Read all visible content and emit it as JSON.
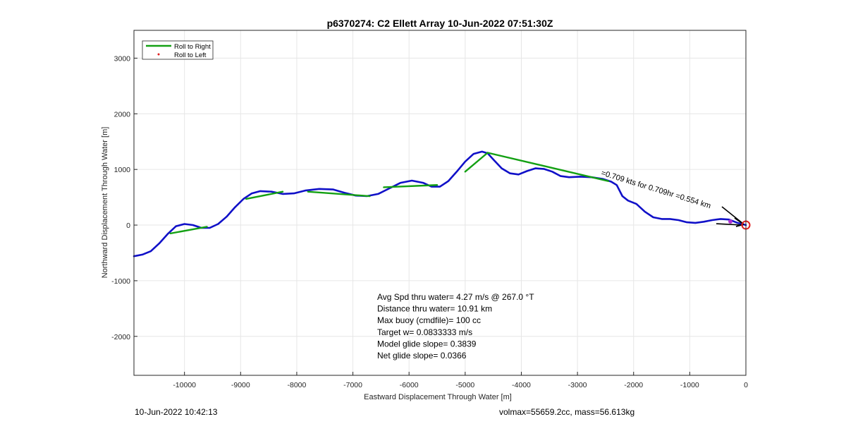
{
  "chart_data": {
    "type": "line",
    "title": "p6370274: C2 Ellett Array 10-Jun-2022 07:51:30Z",
    "xlabel": "Eastward Displacement Through Water [m]",
    "ylabel": "Northward Displacement Through Water [m]",
    "xlim": [
      -10900,
      0
    ],
    "ylim": [
      -2700,
      3500
    ],
    "grid": true,
    "x_ticks": [
      -10000,
      -9000,
      -8000,
      -7000,
      -6000,
      -5000,
      -4000,
      -3000,
      -2000,
      -1000,
      0
    ],
    "y_ticks": [
      -2000,
      -1000,
      0,
      1000,
      2000,
      3000
    ],
    "legend": {
      "placement": "top-left",
      "entries": [
        {
          "label": "Roll to Right",
          "color": "#13a013",
          "style": "line"
        },
        {
          "label": "Roll to Left",
          "color": "#e02020",
          "style": "dot"
        }
      ]
    },
    "series": [
      {
        "color": "#1010c8",
        "points": [
          [
            -10900,
            -560
          ],
          [
            -10750,
            -530
          ],
          [
            -10600,
            -470
          ],
          [
            -10450,
            -330
          ],
          [
            -10300,
            -160
          ],
          [
            -10150,
            -20
          ],
          [
            -10000,
            20
          ],
          [
            -9850,
            0
          ],
          [
            -9700,
            -50
          ],
          [
            -9550,
            -50
          ],
          [
            -9400,
            20
          ],
          [
            -9250,
            150
          ],
          [
            -9100,
            320
          ],
          [
            -8950,
            470
          ],
          [
            -8800,
            570
          ],
          [
            -8650,
            610
          ],
          [
            -8450,
            600
          ],
          [
            -8250,
            560
          ],
          [
            -8050,
            570
          ],
          [
            -7850,
            620
          ],
          [
            -7600,
            650
          ],
          [
            -7350,
            640
          ],
          [
            -7150,
            580
          ],
          [
            -6950,
            530
          ],
          [
            -6750,
            520
          ],
          [
            -6550,
            560
          ],
          [
            -6350,
            660
          ],
          [
            -6150,
            760
          ],
          [
            -5950,
            800
          ],
          [
            -5750,
            760
          ],
          [
            -5600,
            690
          ],
          [
            -5450,
            690
          ],
          [
            -5300,
            790
          ],
          [
            -5150,
            960
          ],
          [
            -5000,
            1140
          ],
          [
            -4850,
            1280
          ],
          [
            -4700,
            1320
          ],
          [
            -4600,
            1290
          ],
          [
            -4500,
            1180
          ],
          [
            -4350,
            1020
          ],
          [
            -4200,
            930
          ],
          [
            -4050,
            910
          ],
          [
            -3900,
            970
          ],
          [
            -3750,
            1020
          ],
          [
            -3600,
            1010
          ],
          [
            -3450,
            960
          ],
          [
            -3300,
            880
          ],
          [
            -3150,
            860
          ],
          [
            -2950,
            870
          ],
          [
            -2750,
            860
          ],
          [
            -2550,
            830
          ],
          [
            -2400,
            780
          ],
          [
            -2300,
            720
          ],
          [
            -2200,
            520
          ],
          [
            -2100,
            440
          ],
          [
            -1950,
            380
          ],
          [
            -1800,
            240
          ],
          [
            -1650,
            140
          ],
          [
            -1500,
            110
          ],
          [
            -1350,
            110
          ],
          [
            -1200,
            90
          ],
          [
            -1050,
            50
          ],
          [
            -900,
            40
          ],
          [
            -750,
            60
          ],
          [
            -600,
            90
          ],
          [
            -450,
            110
          ],
          [
            -300,
            100
          ],
          [
            -150,
            40
          ],
          [
            0,
            0
          ]
        ]
      },
      {
        "name": "Roll to Right",
        "color": "#13a013",
        "segments": [
          [
            [
              -10250,
              -150
            ],
            [
              -9600,
              -30
            ]
          ],
          [
            [
              -8900,
              470
            ],
            [
              -8250,
              600
            ]
          ],
          [
            [
              -7800,
              600
            ],
            [
              -6700,
              520
            ]
          ],
          [
            [
              -6450,
              680
            ],
            [
              -5500,
              720
            ]
          ],
          [
            [
              -5000,
              960
            ],
            [
              -4600,
              1300
            ]
          ],
          [
            [
              -4600,
              1300
            ],
            [
              -2450,
              790
            ]
          ]
        ]
      },
      {
        "name": "Roll to Left",
        "color": "#e02020",
        "points": []
      }
    ],
    "annotations": {
      "current_label": "=0.709 kts for 0.709hr =0.554 km",
      "current_angle_deg": 17,
      "end_marker_color": "#e02020",
      "stats_lines": [
        "Avg Spd thru water=  4.27 m/s @ 267.0 °T",
        "Distance thru water= 10.91 km",
        "Max buoy (cmdfile)= 100 cc",
        "Target w= 0.0833333 m/s",
        "Model glide slope= 0.3839",
        "Net glide slope= 0.0366"
      ]
    }
  },
  "footer": {
    "timestamp": "10-Jun-2022 10:42:13",
    "mass_info": "volmax=55659.2cc, mass=56.613kg"
  }
}
